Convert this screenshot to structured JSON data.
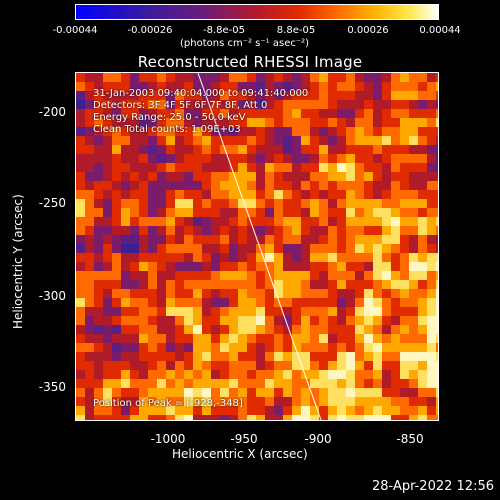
{
  "colorbar": {
    "ticks": [
      "-0.00044",
      "-0.00026",
      "-8.8e-05",
      "8.8e-05",
      "0.00026",
      "0.00044"
    ],
    "units": "(photons cm⁻² s⁻¹ asec⁻²)"
  },
  "title": "Reconstructed RHESSI Image",
  "annotations": {
    "time": "31-Jan-2003 09:40:04.000 to 09:41:40.000",
    "detectors": "Detectors: 3F 4F 5F 6F 7F 8F, Att 0",
    "energy": "Energy Range: 25.0 - 50.0 keV",
    "clean": "Clean    Total counts: 1.09E+03",
    "peak": "Position of Peak = [-928,-348]"
  },
  "axes": {
    "xlabel": "Heliocentric X (arcsec)",
    "ylabel": "Heliocentric Y (arcsec)",
    "xticks": [
      "-1000",
      "-950",
      "-900",
      "-850"
    ],
    "yticks": [
      "-200",
      "-250",
      "-300",
      "-350"
    ]
  },
  "timestamp": "28-Apr-2022 12:56",
  "palette": {
    "bg": "#3a1a64",
    "colors": [
      "#1a1aa0",
      "#3b2190",
      "#5a1f86",
      "#7a1c6a",
      "#b01b2a",
      "#e02a00",
      "#ff6a00",
      "#ffa800",
      "#ffe060",
      "#fff6c0"
    ]
  }
}
